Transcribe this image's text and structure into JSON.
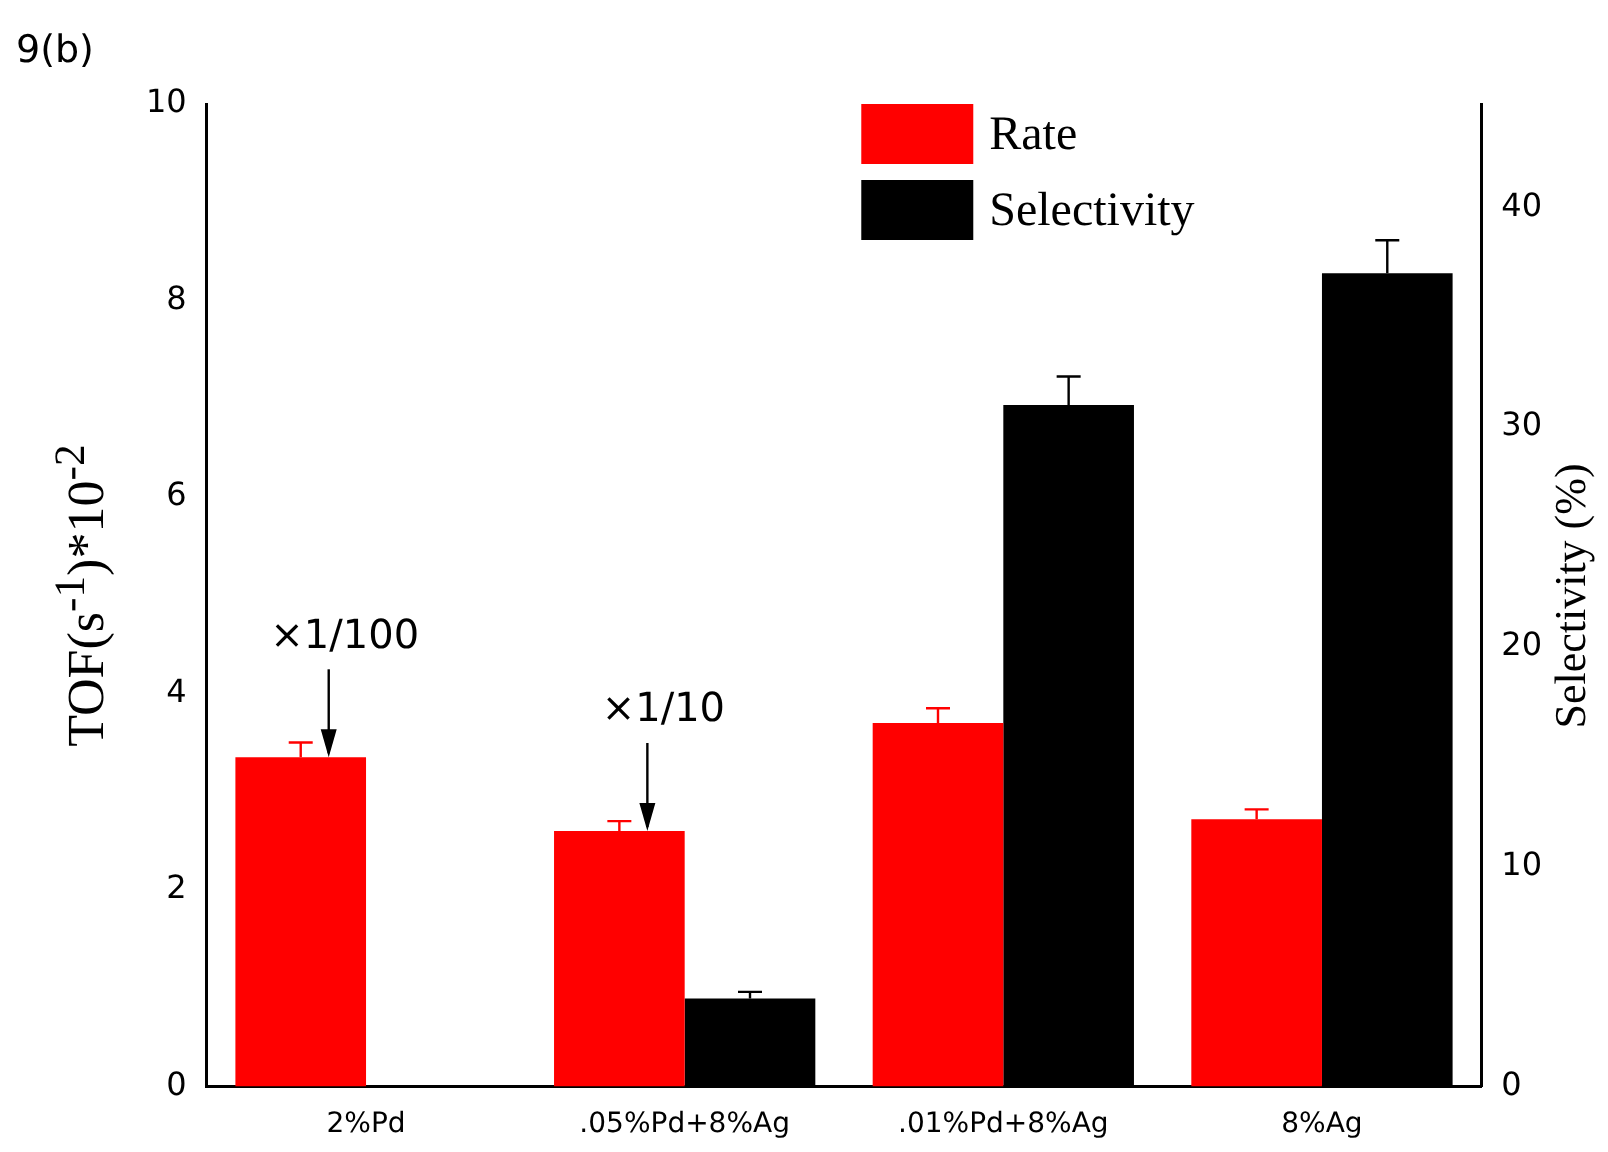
{
  "chart_data": {
    "type": "bar",
    "title": "9(b)",
    "categories": [
      "2%Pd",
      ".05%Pd+8%Ag",
      ".01%Pd+8%Ag",
      "8%Ag"
    ],
    "ylabel": "TOF(s$^{-1}$)*10$^{-2}$",
    "y2label": "Selectivity (%)",
    "series": [
      {
        "name": "Rate",
        "color": "#ff0000",
        "values": [
          3.35,
          2.6,
          3.7,
          2.72
        ],
        "errors": [
          [
            3.35,
            3.5
          ],
          [
            2.6,
            2.7
          ],
          [
            3.7,
            3.85
          ],
          [
            2.72,
            2.82
          ]
        ]
      },
      {
        "name": "Selectivity",
        "color": "#000000",
        "axis": "y2",
        "values": [
          null,
          4,
          31,
          37
        ],
        "errors": [
          null,
          [
            4,
            4.3
          ],
          [
            31,
            32.3
          ],
          [
            37,
            38.5
          ]
        ]
      }
    ],
    "ylim": [
      0,
      10
    ],
    "yticks": [
      0,
      2,
      4,
      6,
      8,
      10
    ],
    "y2lim": [
      0,
      44.7
    ],
    "y2ticks": [
      0,
      10,
      20,
      30,
      40
    ],
    "annotations": [
      {
        "text": "×1/100",
        "x": "2%Pd",
        "y": 3.35
      },
      {
        "text": "×1/10",
        "x": ".05%Pd+8%Ag",
        "y": 2.6
      }
    ],
    "legend": "top right",
    "grid": false
  }
}
